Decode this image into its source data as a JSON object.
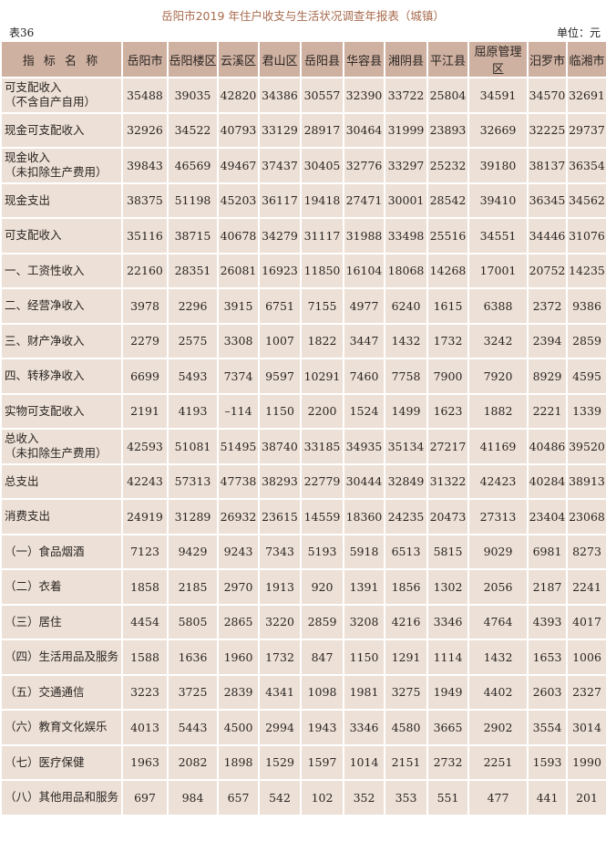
{
  "title": "岳阳市2019 年住户收支与生活状况调查年报表（城镇）",
  "table_no": "表36",
  "unit": "单位：元",
  "colors": {
    "header_bg": "#cfb1a1",
    "body_bg": "#ede0d6",
    "title": "#a86a4c"
  },
  "columns": [
    "指 标 名 称",
    "岳阳市",
    "岳阳楼区",
    "云溪区",
    "君山区",
    "岳阳县",
    "华容县",
    "湘阴县",
    "平江县",
    "屈原管理区",
    "汨罗市",
    "临湘市"
  ],
  "rows": [
    {
      "label": "可支配收入",
      "sub": "（不含自产自用）",
      "values": [
        "35488",
        "39035",
        "42820",
        "34386",
        "30557",
        "32390",
        "33722",
        "25804",
        "34591",
        "34570",
        "32691"
      ]
    },
    {
      "label": "现金可支配收入",
      "values": [
        "32926",
        "34522",
        "40793",
        "33129",
        "28917",
        "30464",
        "31999",
        "23893",
        "32669",
        "32225",
        "29737"
      ]
    },
    {
      "label": "现金收入",
      "sub": "（未扣除生产费用）",
      "values": [
        "39843",
        "46569",
        "49467",
        "37437",
        "30405",
        "32776",
        "33297",
        "25232",
        "39180",
        "38137",
        "36354"
      ]
    },
    {
      "label": "现金支出",
      "values": [
        "38375",
        "51198",
        "45203",
        "36117",
        "19418",
        "27471",
        "30001",
        "28542",
        "39410",
        "36345",
        "34562"
      ]
    },
    {
      "label": "可支配收入",
      "values": [
        "35116",
        "38715",
        "40678",
        "34279",
        "31117",
        "31988",
        "33498",
        "25516",
        "34551",
        "34446",
        "31076"
      ]
    },
    {
      "label": "一、工资性收入",
      "values": [
        "22160",
        "28351",
        "26081",
        "16923",
        "11850",
        "16104",
        "18068",
        "14268",
        "17001",
        "20752",
        "14235"
      ]
    },
    {
      "label": "二、经营净收入",
      "values": [
        "3978",
        "2296",
        "3915",
        "6751",
        "7155",
        "4977",
        "6240",
        "1615",
        "6388",
        "2372",
        "9386"
      ]
    },
    {
      "label": "三、财产净收入",
      "values": [
        "2279",
        "2575",
        "3308",
        "1007",
        "1822",
        "3447",
        "1432",
        "1732",
        "3242",
        "2394",
        "2859"
      ]
    },
    {
      "label": "四、转移净收入",
      "values": [
        "6699",
        "5493",
        "7374",
        "9597",
        "10291",
        "7460",
        "7758",
        "7900",
        "7920",
        "8929",
        "4595"
      ]
    },
    {
      "label": "实物可支配收入",
      "values": [
        "2191",
        "4193",
        "–114",
        "1150",
        "2200",
        "1524",
        "1499",
        "1623",
        "1882",
        "2221",
        "1339"
      ]
    },
    {
      "label": "总收入",
      "sub": "（未扣除生产费用）",
      "values": [
        "42593",
        "51081",
        "51495",
        "38740",
        "33185",
        "34935",
        "35134",
        "27217",
        "41169",
        "40486",
        "39520"
      ]
    },
    {
      "label": "总支出",
      "values": [
        "42243",
        "57313",
        "47738",
        "38293",
        "22779",
        "30444",
        "32849",
        "31322",
        "42423",
        "40284",
        "38913"
      ]
    },
    {
      "label": "消费支出",
      "values": [
        "24919",
        "31289",
        "26932",
        "23615",
        "14559",
        "18360",
        "24235",
        "20473",
        "27313",
        "23404",
        "23068"
      ]
    },
    {
      "label": "（一）食品烟酒",
      "values": [
        "7123",
        "9429",
        "9243",
        "7343",
        "5193",
        "5918",
        "6513",
        "5815",
        "9029",
        "6981",
        "8273"
      ]
    },
    {
      "label": "（二）衣着",
      "values": [
        "1858",
        "2185",
        "2970",
        "1913",
        "920",
        "1391",
        "1856",
        "1302",
        "2056",
        "2187",
        "2241"
      ]
    },
    {
      "label": "（三）居住",
      "values": [
        "4454",
        "5805",
        "2865",
        "3220",
        "2859",
        "3208",
        "4216",
        "3346",
        "4764",
        "4393",
        "4017"
      ]
    },
    {
      "label": "（四）生活用品及服务",
      "values": [
        "1588",
        "1636",
        "1960",
        "1732",
        "847",
        "1150",
        "1291",
        "1114",
        "1432",
        "1653",
        "1006"
      ]
    },
    {
      "label": "（五）交通通信",
      "values": [
        "3223",
        "3725",
        "2839",
        "4341",
        "1098",
        "1981",
        "3275",
        "1949",
        "4402",
        "2603",
        "2327"
      ]
    },
    {
      "label": "（六）教育文化娱乐",
      "values": [
        "4013",
        "5443",
        "4500",
        "2994",
        "1943",
        "3346",
        "4580",
        "3665",
        "2902",
        "3554",
        "3014"
      ]
    },
    {
      "label": "（七）医疗保健",
      "values": [
        "1963",
        "2082",
        "1898",
        "1529",
        "1597",
        "1014",
        "2151",
        "2732",
        "2251",
        "1593",
        "1990"
      ]
    },
    {
      "label": "（八）其他用品和服务",
      "values": [
        "697",
        "984",
        "657",
        "542",
        "102",
        "352",
        "353",
        "551",
        "477",
        "441",
        "201"
      ]
    }
  ]
}
